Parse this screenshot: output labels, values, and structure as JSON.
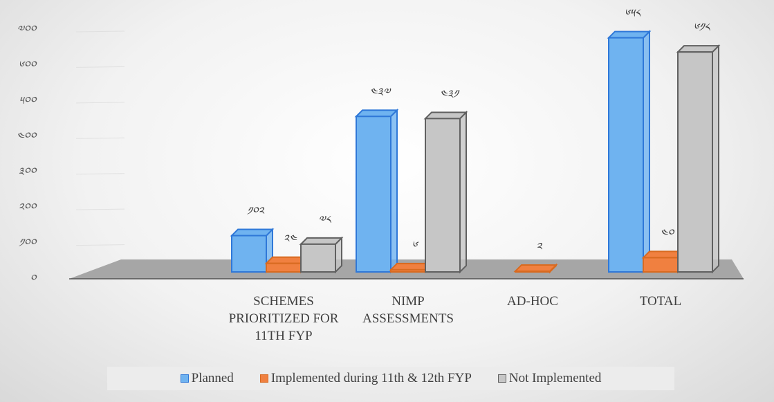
{
  "chart_data": {
    "type": "bar3d",
    "categories": [
      "SCHEMES PRIORITIZED FOR 11TH FYP",
      "NIMP ASSESSMENTS",
      "AD-HOC",
      "TOTAL"
    ],
    "series": [
      {
        "name": "Planned",
        "color": "#6fb3f0",
        "edge": "#2f78d8",
        "values": [
          102,
          437,
          null,
          658
        ],
        "value_labels": [
          "༡༠༢",
          "༤༣༧",
          null,
          "༦༥༨"
        ]
      },
      {
        "name": "Implemented during 11th & 12th FYP",
        "color": "#f08040",
        "edge": "#d86a20",
        "values": [
          24,
          6,
          2,
          40
        ],
        "value_labels": [
          "༢༤",
          "༦",
          "༢",
          "༤༠"
        ]
      },
      {
        "name": "Not Implemented",
        "color": "#c6c6c6",
        "edge": "#606060",
        "values": [
          78,
          431,
          null,
          618
        ],
        "value_labels": [
          "༧༨",
          "༤༣༡",
          null,
          "༦༡༨"
        ]
      }
    ],
    "ylim": [
      0,
      700
    ],
    "yticks": [
      {
        "value": 0,
        "label": "༠"
      },
      {
        "value": 100,
        "label": "༡༠༠"
      },
      {
        "value": 200,
        "label": "༢༠༠"
      },
      {
        "value": 300,
        "label": "༣༠༠"
      },
      {
        "value": 400,
        "label": "༤༠༠"
      },
      {
        "value": 500,
        "label": "༥༠༠"
      },
      {
        "value": 600,
        "label": "༦༠༠"
      },
      {
        "value": 700,
        "label": "༧༠༠"
      }
    ],
    "grid": true,
    "legend": "bottom"
  }
}
